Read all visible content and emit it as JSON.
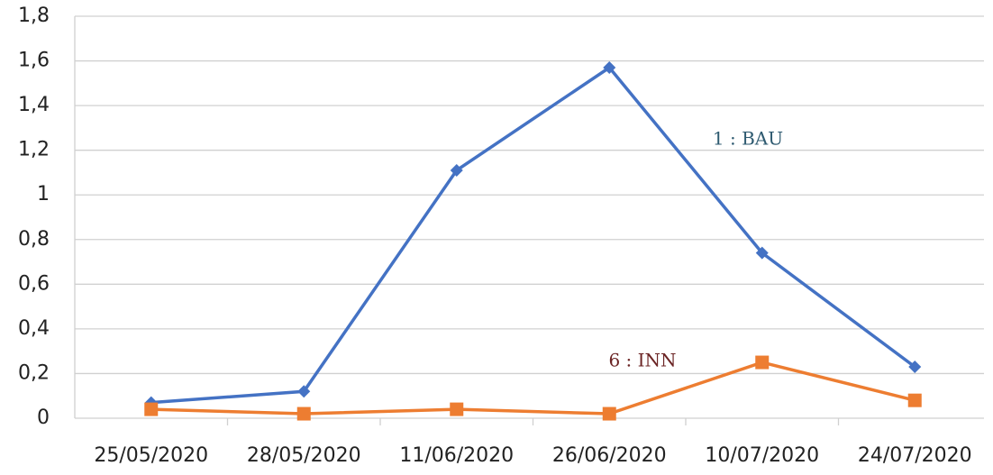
{
  "chart_data": {
    "type": "line",
    "categories": [
      "25/05/2020",
      "28/05/2020",
      "11/06/2020",
      "26/06/2020",
      "10/07/2020",
      "24/07/2020"
    ],
    "series": [
      {
        "name": "1 : BAU",
        "color": "#4472c4",
        "label_color": "#2e5a70",
        "marker": "diamond",
        "values": [
          0.07,
          0.12,
          1.11,
          1.57,
          0.74,
          0.23
        ]
      },
      {
        "name": "6 : INN",
        "color": "#ed7d31",
        "label_color": "#6b2424",
        "marker": "square",
        "values": [
          0.04,
          0.02,
          0.04,
          0.02,
          0.25,
          0.08
        ]
      }
    ],
    "ylim": [
      0,
      1.8
    ],
    "yticks": [
      0,
      {
        "value": 0.2,
        "label": "0,2"
      },
      {
        "value": 0.4,
        "label": "0,4"
      },
      {
        "value": 0.6,
        "label": "0,6"
      },
      {
        "value": 0.8,
        "label": "0,8"
      },
      1,
      {
        "value": 1.2,
        "label": "1,2"
      },
      {
        "value": 1.4,
        "label": "1,4"
      },
      {
        "value": 1.6,
        "label": "1,6"
      },
      {
        "value": 1.8,
        "label": "1,8"
      }
    ],
    "grid": true
  }
}
